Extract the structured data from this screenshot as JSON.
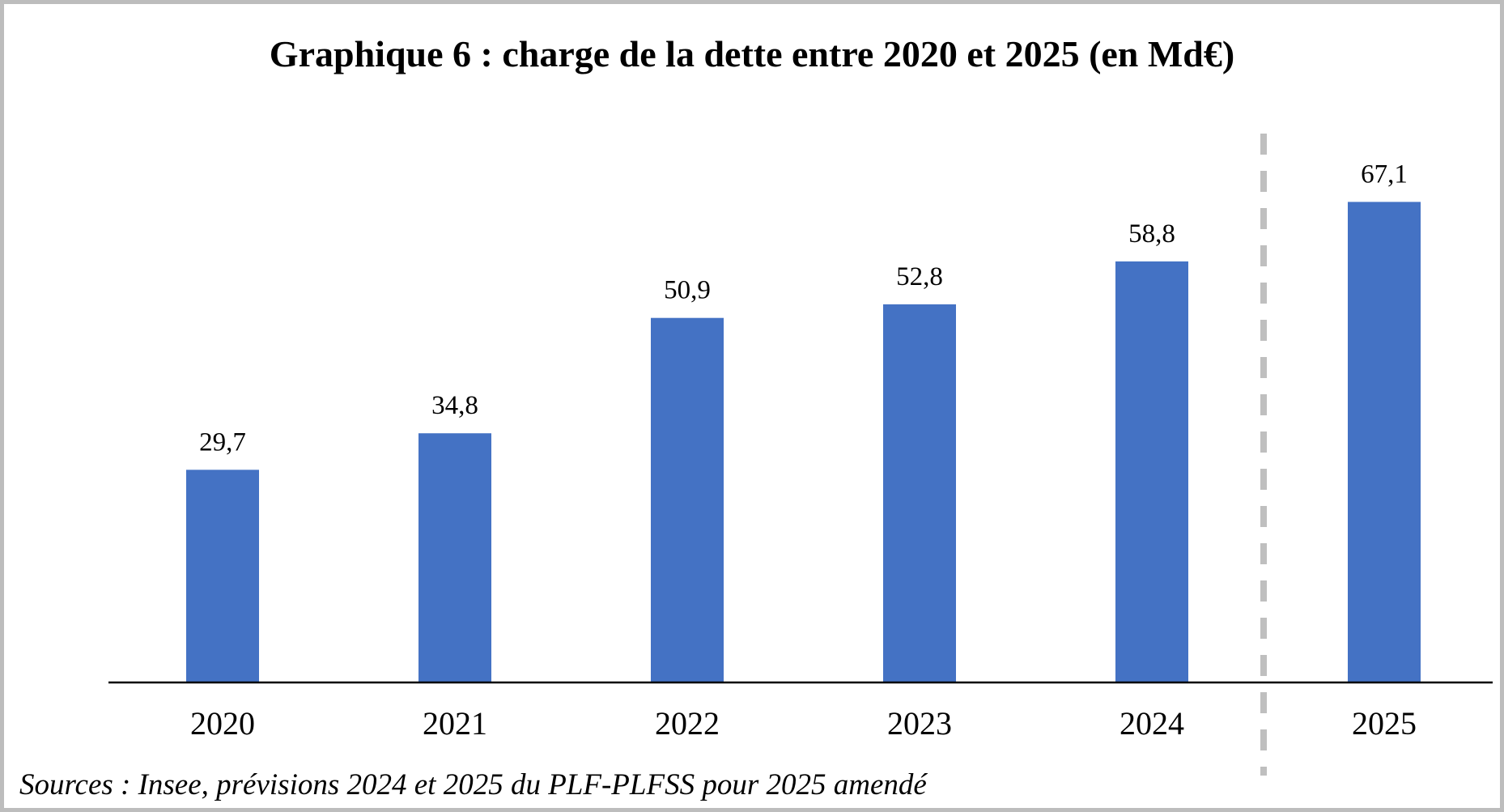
{
  "chart_data": {
    "type": "bar",
    "title": "Graphique 6 : charge de la dette entre 2020 et 2025 (en Md€)",
    "categories": [
      "2020",
      "2021",
      "2022",
      "2023",
      "2024",
      "2025"
    ],
    "values": [
      29.7,
      34.8,
      50.9,
      52.8,
      58.8,
      67.1
    ],
    "value_labels": [
      "29,7",
      "34,8",
      "50,9",
      "52,8",
      "58,8",
      "67,1"
    ],
    "xlabel": "",
    "ylabel": "",
    "ylim": [
      0,
      80
    ],
    "grid": false,
    "legend": "none",
    "bar_color": "#4472c4",
    "separator": {
      "between": [
        "2024",
        "2025"
      ],
      "style": "dashed",
      "color": "#bfbfbf"
    },
    "source": "Sources : Insee, prévisions 2024 et 2025 du PLF-PLFSS pour 2025 amendé"
  },
  "colors": {
    "frame_border": "#bdbdbd",
    "axis": "#000000",
    "text": "#000000"
  }
}
